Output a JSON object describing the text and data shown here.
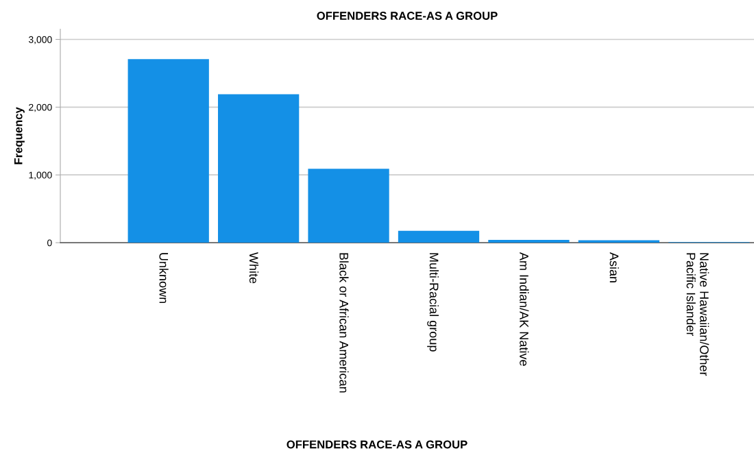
{
  "chart_data": {
    "type": "bar",
    "title": "OFFENDERS RACE-AS A GROUP",
    "xlabel": "OFFENDERS RACE-AS A GROUP",
    "ylabel": "Frequency",
    "categories": [
      "Unknown",
      "White",
      "Black or African American",
      "Multi-Racial group",
      "Am Indian/AK Native",
      "Asian",
      "Native Hawaiian/Other Pacific Islander"
    ],
    "values": [
      2710,
      2190,
      1090,
      175,
      40,
      35,
      8
    ],
    "color": "#1490e6",
    "ylim": [
      0,
      3150
    ],
    "yticks": [
      {
        "value": 0,
        "label": "0"
      },
      {
        "value": 1000,
        "label": "1,000"
      },
      {
        "value": 2000,
        "label": "2,000"
      },
      {
        "value": 3000,
        "label": "3,000"
      }
    ],
    "grid": "y",
    "legend": false
  }
}
